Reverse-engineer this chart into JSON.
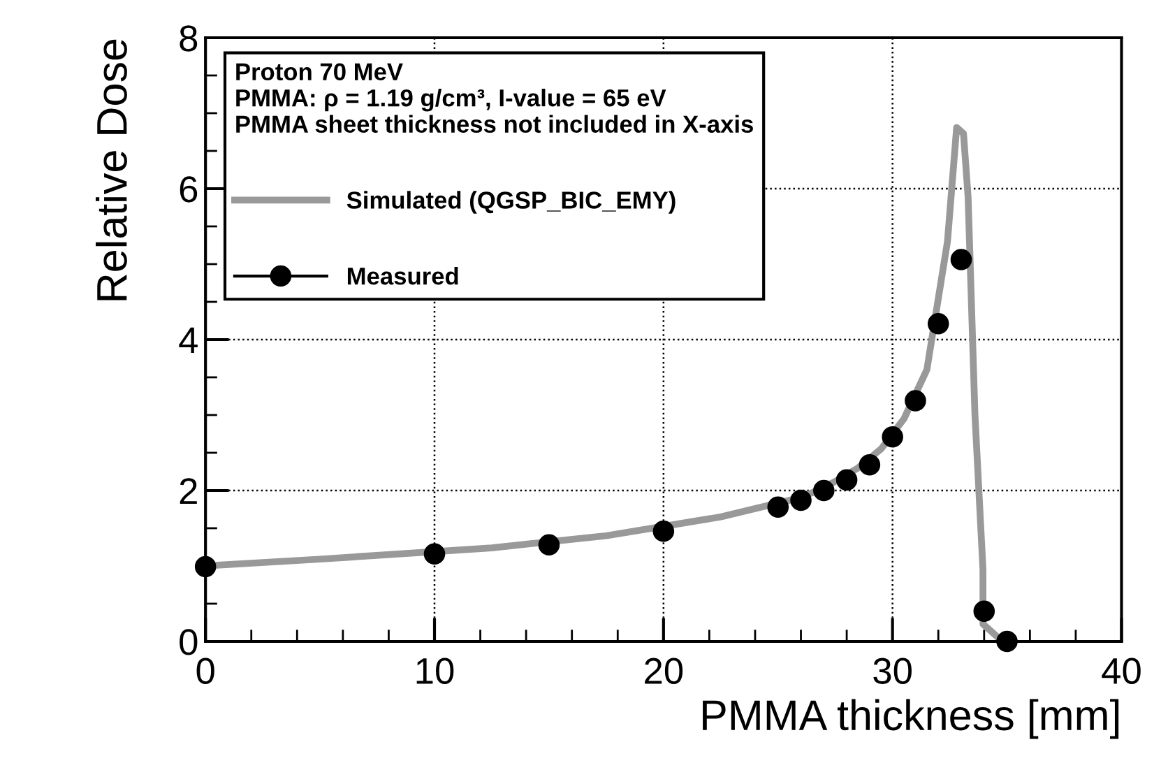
{
  "chart_data": {
    "type": "line",
    "xlabel": "PMMA thickness [mm]",
    "ylabel": "Relative Dose",
    "legend_title": "Proton 70 MeV\nPMMA: ρ = 1.19 g/cm³, I-value = 65 eV\nPMMA sheet thickness not included in X-axis",
    "series": [
      {
        "name": "Simulated (QGSP_BIC_EMY)",
        "color": "#999999",
        "marker": "none",
        "x": [
          0,
          5,
          12.5,
          17.5,
          22.5,
          25.5,
          26.5,
          27.5,
          28.5,
          29.5,
          30.5,
          31.5,
          32.4,
          32.8,
          33.1,
          33.3,
          33.6,
          33.95,
          33.95,
          34.8
        ],
        "values": [
          1.0,
          1.09,
          1.24,
          1.4,
          1.65,
          1.87,
          1.97,
          2.12,
          2.3,
          2.55,
          2.95,
          3.6,
          5.3,
          6.81,
          6.73,
          5.89,
          3.0,
          0.95,
          0.23,
          0
        ]
      },
      {
        "name": "Measured",
        "type": "scatter",
        "color": "#000000",
        "marker": "circle",
        "x": [
          0,
          10,
          15,
          20,
          25,
          26,
          27,
          28,
          29,
          30,
          31,
          32,
          33,
          34,
          35
        ],
        "values": [
          0.99,
          1.16,
          1.28,
          1.46,
          1.78,
          1.87,
          2.0,
          2.14,
          2.34,
          2.71,
          3.19,
          4.21,
          5.06,
          0.4,
          0
        ]
      }
    ],
    "xlim": [
      0,
      40
    ],
    "xticks": [
      0,
      10,
      20,
      30,
      40
    ],
    "ylim": [
      0,
      8
    ],
    "yticks": [
      0,
      2,
      4,
      6,
      8
    ],
    "grid": true,
    "legend": "top left"
  }
}
